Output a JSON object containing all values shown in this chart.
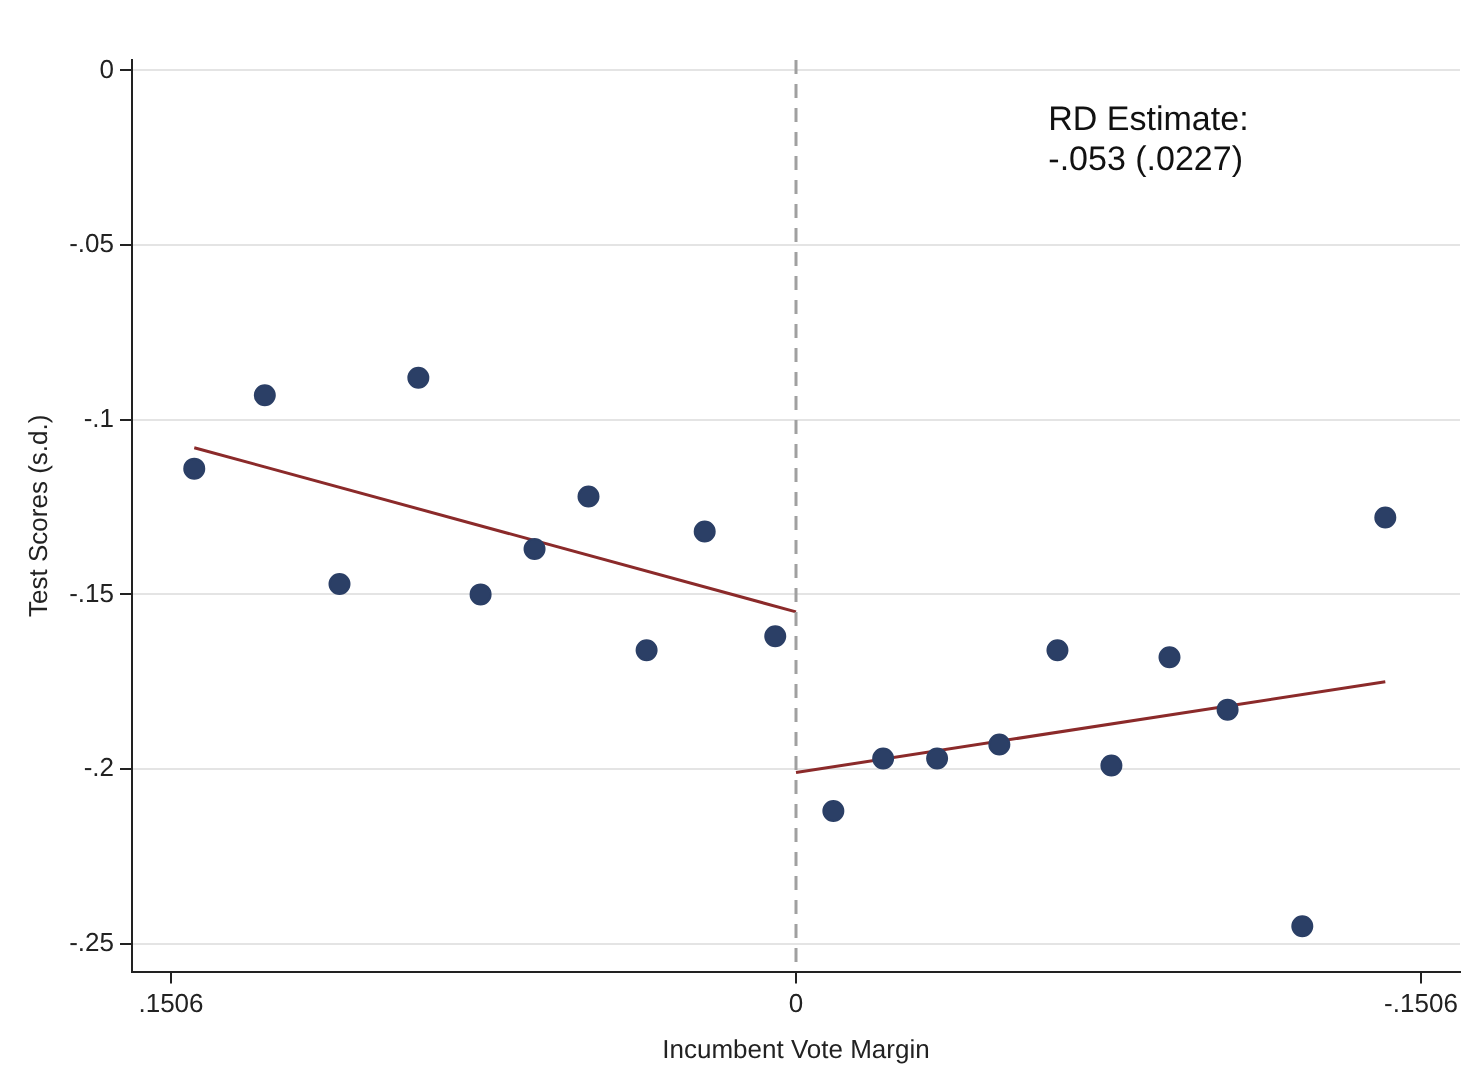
{
  "chart_data": {
    "type": "scatter",
    "xlabel": "Incumbent Vote Margin",
    "ylabel": "Test Scores (s.d.)",
    "xlim": [
      0.16,
      -0.16
    ],
    "xticks": [
      {
        "value": 0.1506,
        "label": ".1506"
      },
      0,
      {
        "value": -0.1506,
        "label": "-.1506"
      }
    ],
    "ylim": [
      -0.258,
      0.003
    ],
    "yticks": [
      0,
      {
        "value": -0.05,
        "label": "-.05"
      },
      {
        "value": -0.1,
        "label": "-.1"
      },
      {
        "value": -0.15,
        "label": "-.15"
      },
      {
        "value": -0.2,
        "label": "-.2"
      },
      {
        "value": -0.25,
        "label": "-.25"
      }
    ],
    "grid": "y",
    "legend": false,
    "ref_lines": [
      {
        "axis": "x",
        "value": 0,
        "color": "#a0a0a0",
        "line_style": "dashed"
      }
    ],
    "annotations": [
      "RD Estimate:\n-.053 (.0227)"
    ],
    "series": [
      {
        "marker": "circle",
        "color": "#2b3f66",
        "x": [
          0.145,
          0.128,
          0.11,
          0.091,
          0.076,
          0.063,
          0.05,
          0.036,
          0.022,
          0.005,
          -0.009,
          -0.021,
          -0.034,
          -0.049,
          -0.063,
          -0.076,
          -0.09,
          -0.104,
          -0.122,
          -0.142
        ],
        "values": [
          -0.114,
          -0.093,
          -0.147,
          -0.088,
          -0.15,
          -0.137,
          -0.122,
          -0.166,
          -0.132,
          -0.162,
          -0.212,
          -0.197,
          -0.197,
          -0.193,
          -0.166,
          -0.199,
          -0.168,
          -0.183,
          -0.245,
          -0.128
        ]
      },
      {
        "type": "line",
        "color": "#8b2a2a",
        "x": [
          0.145,
          0
        ],
        "values": [
          -0.108,
          -0.155
        ]
      },
      {
        "type": "line",
        "color": "#8b2a2a",
        "x": [
          0,
          -0.142
        ],
        "values": [
          -0.201,
          -0.175
        ]
      }
    ]
  }
}
